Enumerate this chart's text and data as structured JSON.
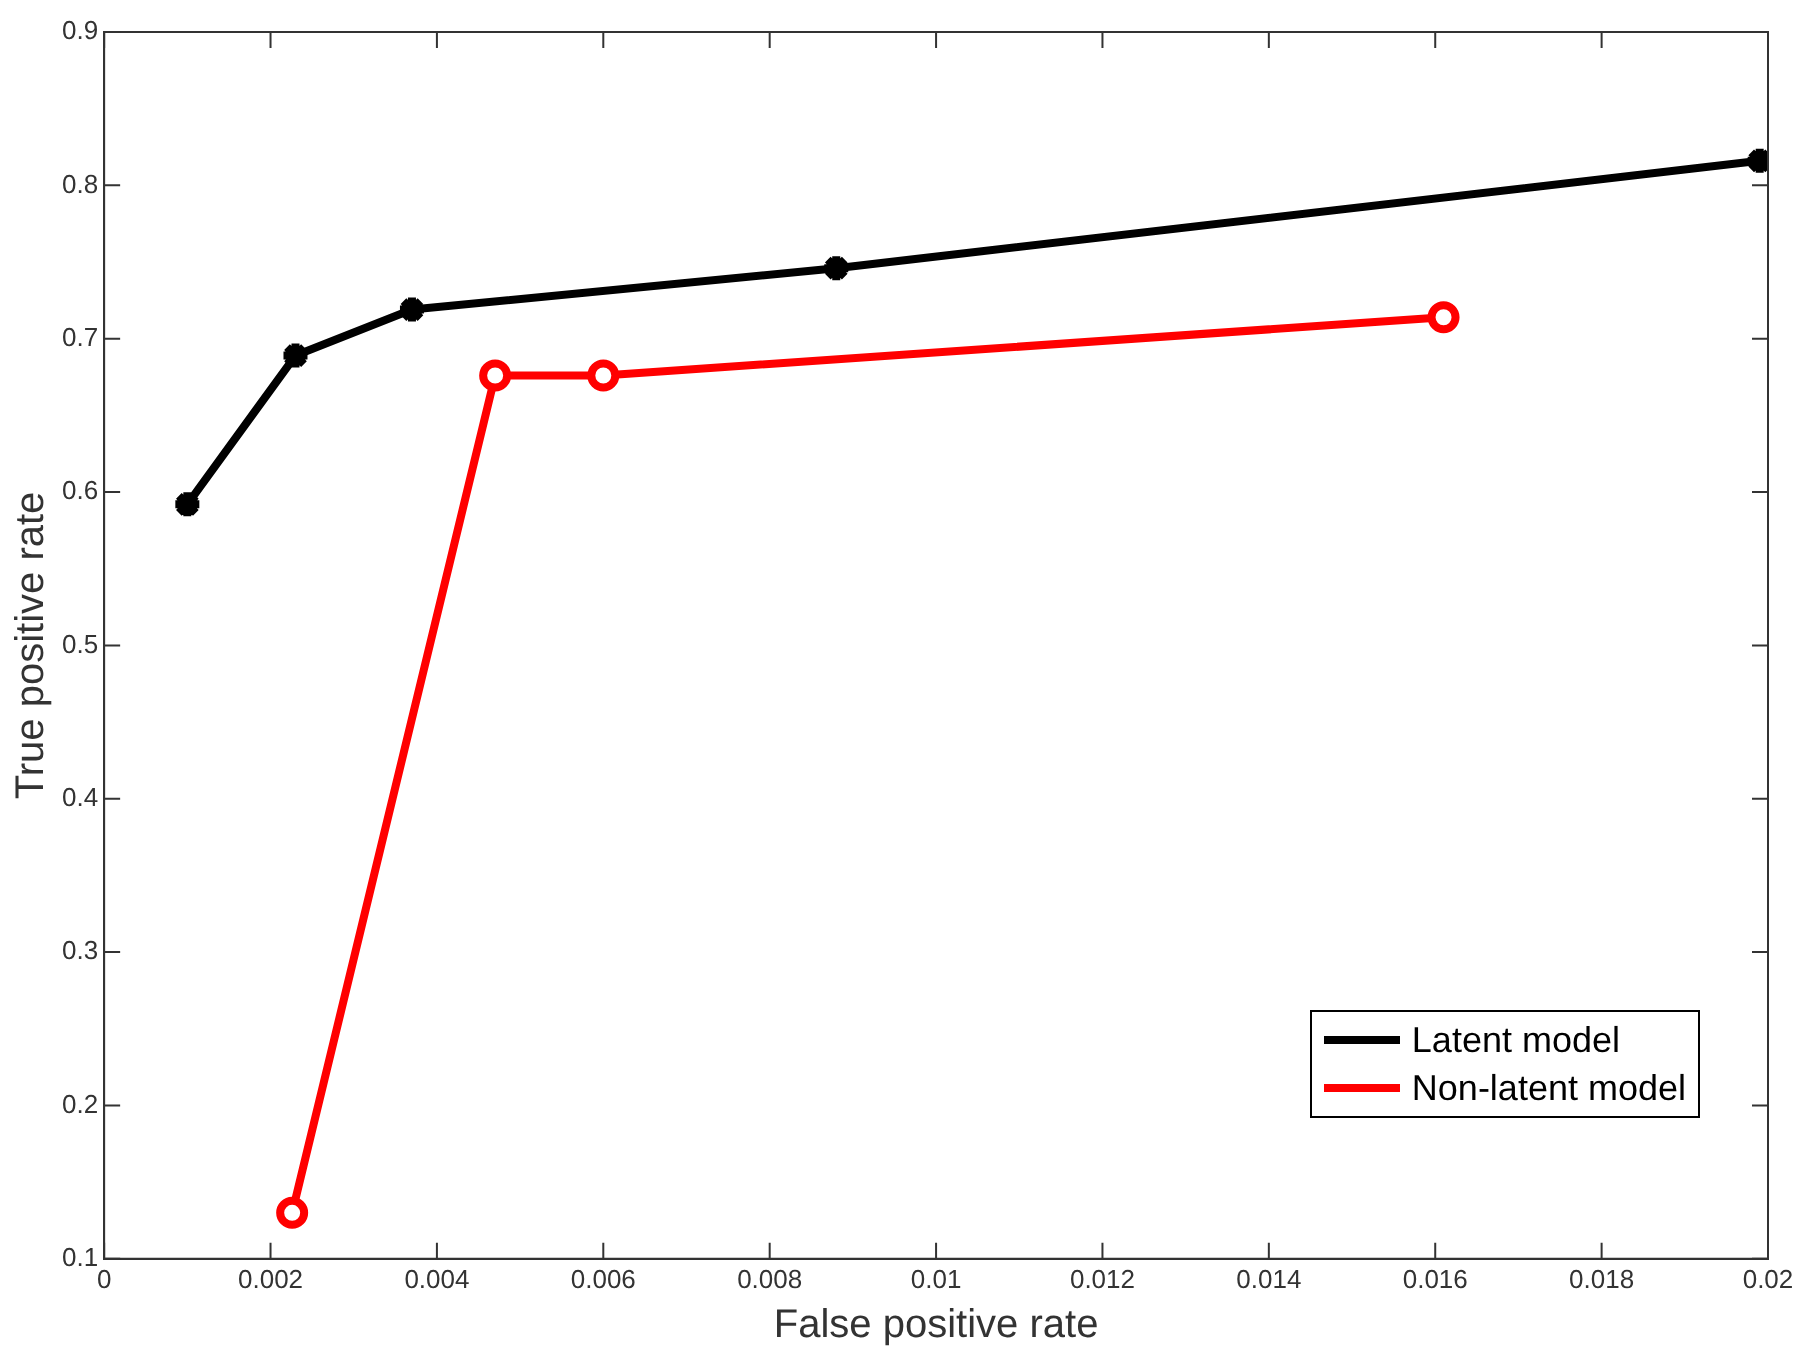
{
  "chart_data": {
    "type": "line",
    "xlabel": "False positive rate",
    "ylabel": "True positive rate",
    "xlim": [
      0,
      0.02
    ],
    "xticks": [
      0,
      0.002,
      0.004,
      0.006,
      0.008,
      0.01,
      0.012,
      0.014,
      0.016,
      0.018,
      0.02
    ],
    "ylim": [
      0.1,
      0.9
    ],
    "yticks": [
      0.1,
      0.2,
      0.3,
      0.4,
      0.5,
      0.6,
      0.7,
      0.8,
      0.9
    ],
    "grid": false,
    "legend": "bottom right",
    "line_style": "solid",
    "series": [
      {
        "name": "Latent model",
        "color": "#000000",
        "marker": "cross",
        "x": [
          0.001,
          0.0023,
          0.0037,
          0.0088,
          0.0199
        ],
        "values": [
          0.592,
          0.689,
          0.719,
          0.746,
          0.816
        ]
      },
      {
        "name": "Non-latent model",
        "color": "#ff0000",
        "marker": "circle",
        "x": [
          0.00226,
          0.0047,
          0.006,
          0.0161
        ],
        "values": [
          0.13,
          0.676,
          0.676,
          0.714
        ]
      }
    ]
  }
}
